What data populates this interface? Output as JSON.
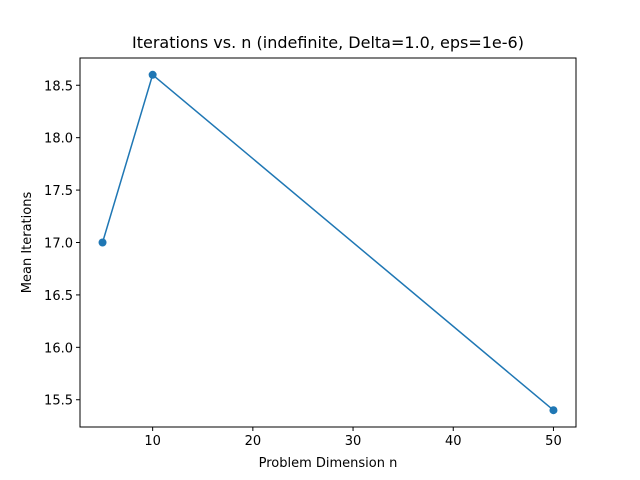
{
  "chart_data": {
    "type": "line",
    "title": "Iterations vs. n (indefinite, Delta=1.0, eps=1e-6)",
    "xlabel": "Problem Dimension n",
    "ylabel": "Mean Iterations",
    "x": [
      5,
      10,
      50
    ],
    "series": [
      {
        "values": [
          17.0,
          18.6,
          15.4
        ]
      }
    ],
    "xlim": [
      2.75,
      52.25
    ],
    "ylim": [
      15.24,
      18.76
    ],
    "xticks": [
      10,
      20,
      30,
      40,
      50
    ],
    "xtick_labels": [
      "10",
      "20",
      "30",
      "40",
      "50"
    ],
    "yticks": [
      15.5,
      16.0,
      16.5,
      17.0,
      17.5,
      18.0,
      18.5
    ],
    "ytick_labels": [
      "15.5",
      "16.0",
      "16.5",
      "17.0",
      "17.5",
      "18.0",
      "18.5"
    ],
    "grid": false,
    "markers": true,
    "colors": {
      "series": "#1f77b4",
      "axes": "#000000"
    }
  }
}
